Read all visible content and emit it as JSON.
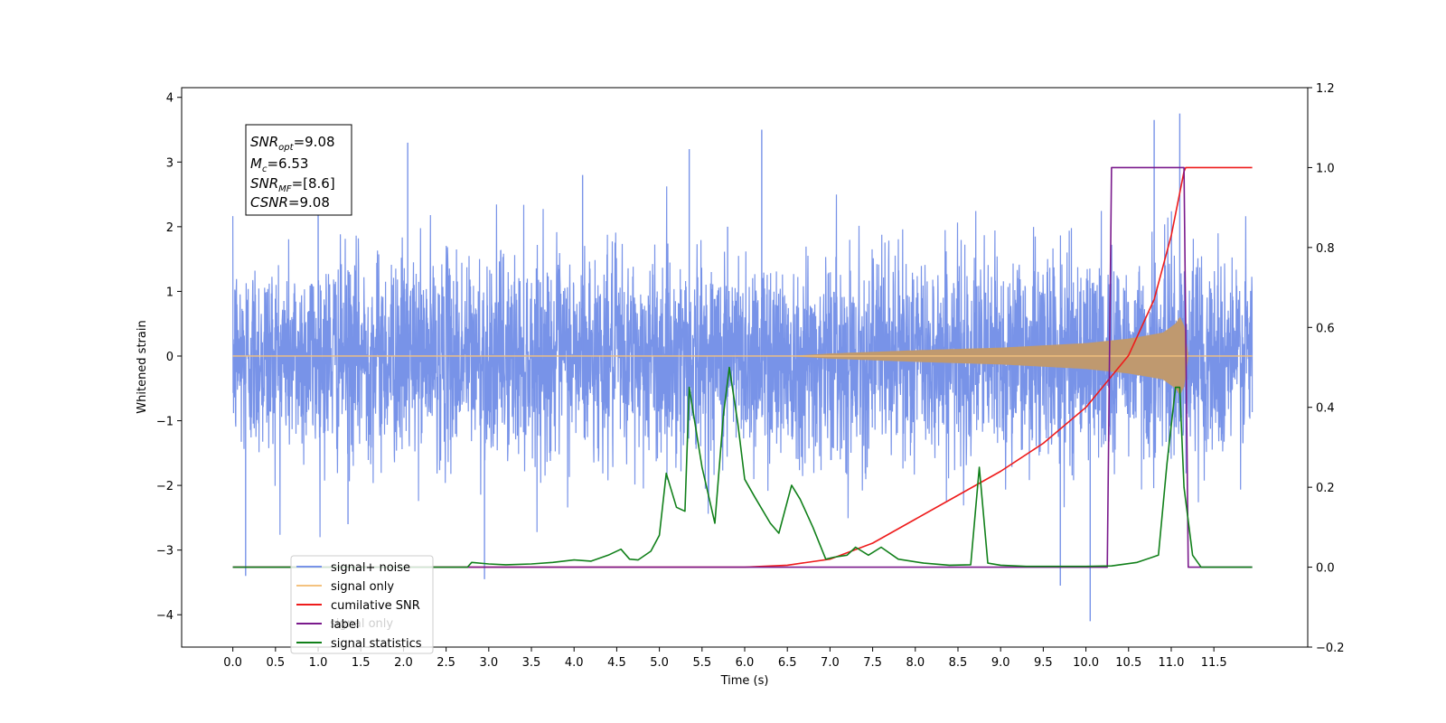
{
  "chart_data": {
    "type": "line",
    "xlabel": "Time (s)",
    "ylabel": "Whitened strain",
    "xlim": [
      -0.6,
      12.6
    ],
    "ylim": [
      -4.5,
      4.15
    ],
    "y2lim": [
      -0.2,
      1.2
    ],
    "x_ticks": [
      "0.0",
      "0.5",
      "1.0",
      "1.5",
      "2.0",
      "2.5",
      "3.0",
      "3.5",
      "4.0",
      "4.5",
      "5.0",
      "5.5",
      "6.0",
      "6.5",
      "7.0",
      "7.5",
      "8.0",
      "8.5",
      "9.0",
      "9.5",
      "10.0",
      "10.5",
      "11.0",
      "11.5"
    ],
    "y_ticks": [
      "−4",
      "−3",
      "−2",
      "−1",
      "0",
      "1",
      "2",
      "3",
      "4"
    ],
    "y2_ticks": [
      "−0.2",
      "0.0",
      "0.2",
      "0.4",
      "0.6",
      "0.8",
      "1.0",
      "1.2"
    ],
    "annotation": {
      "snr_opt_label": "SNR",
      "snr_opt_sub": "opt",
      "snr_opt_value": "=9.08",
      "mc_label": "M",
      "mc_sub": "c",
      "mc_value": "=6.53",
      "snr_mf_label": "SNR",
      "snr_mf_sub": "MF",
      "snr_mf_value": "=[8.6]",
      "csnr_label": "CSNR",
      "csnr_value": "=9.08"
    },
    "legend": {
      "placement": "lower-left",
      "entries": [
        "signal+ noise",
        "signal only",
        "cumilative SNR",
        "label",
        "signal statistics"
      ],
      "colors": [
        "#7893e8",
        "#f4c27f",
        "#ee1c1c",
        "#7a1a8c",
        "#11801a"
      ],
      "hidden_overlap_text": "signal only"
    },
    "series": [
      {
        "name": "signal+ noise",
        "axis": "left",
        "color": "#7893e8",
        "envelope_spikes": {
          "x": [
            0.15,
            1.0,
            1.35,
            2.05,
            2.95,
            4.1,
            5.35,
            5.8,
            6.2,
            9.7,
            10.05,
            10.8,
            11.1
          ],
          "y": [
            -3.4,
            2.55,
            -2.6,
            3.3,
            -3.45,
            2.8,
            3.2,
            2.0,
            3.5,
            -3.55,
            -4.1,
            3.65,
            3.75
          ]
        }
      },
      {
        "name": "signal only",
        "axis": "left",
        "color": "#f4c27f",
        "x": [
          0.0,
          6.5,
          7.0,
          8.0,
          9.0,
          10.0,
          10.5,
          10.9,
          11.05,
          11.15,
          11.16,
          11.95
        ],
        "amplitude": [
          0.0,
          0.0,
          0.04,
          0.09,
          0.13,
          0.2,
          0.27,
          0.36,
          0.5,
          0.7,
          0.0,
          0.0
        ]
      },
      {
        "name": "cumilative SNR",
        "axis": "right",
        "color": "#ee1c1c",
        "x": [
          0.0,
          6.0,
          6.5,
          7.0,
          7.5,
          8.0,
          8.5,
          9.0,
          9.5,
          10.0,
          10.5,
          10.8,
          11.0,
          11.15,
          11.17,
          11.95
        ],
        "values": [
          0.0,
          0.0,
          0.005,
          0.02,
          0.06,
          0.12,
          0.18,
          0.24,
          0.31,
          0.4,
          0.53,
          0.67,
          0.83,
          0.99,
          1.0,
          1.0
        ]
      },
      {
        "name": "label",
        "axis": "right",
        "color": "#7a1a8c",
        "x": [
          0.0,
          10.25,
          10.3,
          11.15,
          11.2,
          11.95
        ],
        "values": [
          0.0,
          0.0,
          1.0,
          1.0,
          0.0,
          0.0
        ]
      },
      {
        "name": "signal statistics",
        "axis": "right",
        "color": "#11801a",
        "x": [
          0.0,
          2.75,
          2.8,
          3.0,
          3.2,
          3.5,
          3.75,
          4.0,
          4.2,
          4.4,
          4.55,
          4.65,
          4.75,
          4.9,
          5.0,
          5.08,
          5.2,
          5.3,
          5.35,
          5.5,
          5.65,
          5.75,
          5.82,
          5.92,
          6.0,
          6.12,
          6.3,
          6.4,
          6.55,
          6.65,
          6.8,
          6.95,
          7.05,
          7.2,
          7.3,
          7.45,
          7.6,
          7.8,
          8.1,
          8.4,
          8.65,
          8.75,
          8.85,
          9.0,
          9.3,
          10.0,
          10.3,
          10.6,
          10.85,
          10.95,
          11.05,
          11.1,
          11.15,
          11.25,
          11.35,
          11.95
        ],
        "values": [
          0.0,
          0.0,
          0.012,
          0.008,
          0.006,
          0.008,
          0.012,
          0.018,
          0.015,
          0.03,
          0.045,
          0.02,
          0.018,
          0.04,
          0.08,
          0.235,
          0.15,
          0.14,
          0.45,
          0.25,
          0.11,
          0.38,
          0.5,
          0.36,
          0.22,
          0.175,
          0.11,
          0.085,
          0.205,
          0.17,
          0.1,
          0.02,
          0.025,
          0.03,
          0.05,
          0.03,
          0.05,
          0.02,
          0.01,
          0.005,
          0.006,
          0.25,
          0.01,
          0.005,
          0.002,
          0.002,
          0.003,
          0.012,
          0.03,
          0.26,
          0.45,
          0.45,
          0.2,
          0.03,
          0.0,
          0.0
        ]
      }
    ]
  }
}
